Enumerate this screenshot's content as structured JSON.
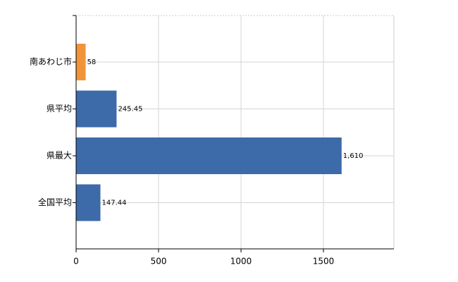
{
  "chart_data": {
    "type": "hbar",
    "categories": [
      "南あわじ市",
      "県平均",
      "県最大",
      "全国平均"
    ],
    "values": [
      58,
      245.45,
      1610,
      147.44
    ],
    "value_labels": [
      "58",
      "245.45",
      "1,610",
      "147.44"
    ],
    "colors": [
      "#f0943a",
      "#3d6aa8",
      "#3d6aa8",
      "#3d6aa8"
    ],
    "xlim": [
      0,
      1927
    ],
    "xticks": [
      0,
      500,
      1000,
      1500
    ],
    "grid": true
  }
}
